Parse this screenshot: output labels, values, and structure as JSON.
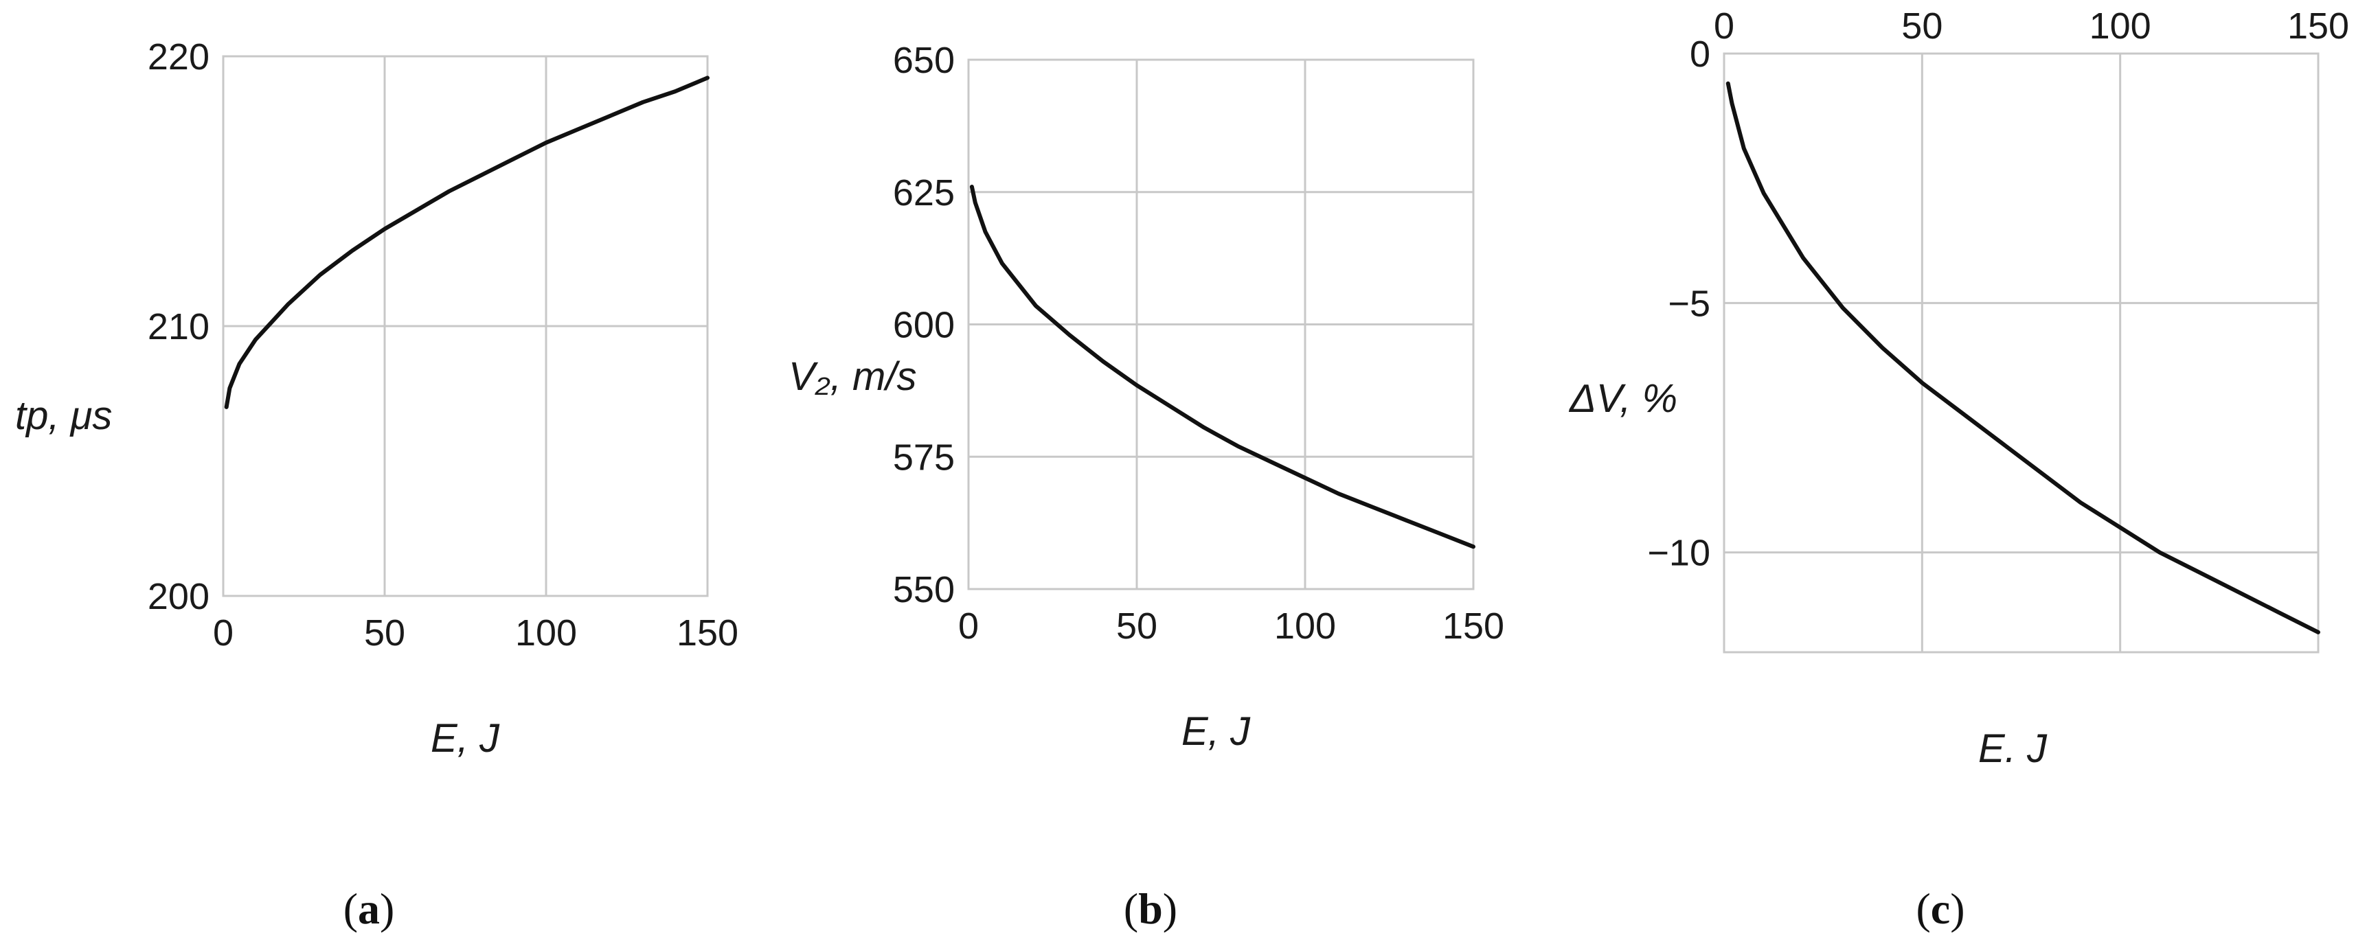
{
  "chart_data": [
    {
      "id": "a",
      "type": "line",
      "caption": {
        "open": "(",
        "letter": "a",
        "close": ")"
      },
      "xlabel": "E, J",
      "ylabel": "tp,  μs",
      "xlim": [
        0,
        150
      ],
      "ylim": [
        200,
        220
      ],
      "xticks": [
        0,
        50,
        100,
        150
      ],
      "yticks": [
        200,
        210,
        220
      ],
      "xtick_labels": [
        "0",
        "50",
        "100",
        "150"
      ],
      "ytick_labels": [
        "200",
        "210",
        "220"
      ],
      "x_axis_position": "bottom",
      "grid": true,
      "series": [
        {
          "color": "#111111",
          "x": [
            1,
            2,
            5,
            10,
            20,
            30,
            40,
            50,
            60,
            70,
            80,
            90,
            100,
            110,
            120,
            130,
            140,
            150
          ],
          "y": [
            207.0,
            207.7,
            208.6,
            209.5,
            210.8,
            211.9,
            212.8,
            213.6,
            214.3,
            215.0,
            215.6,
            216.2,
            216.8,
            217.3,
            217.8,
            218.3,
            218.7,
            219.2
          ]
        }
      ]
    },
    {
      "id": "b",
      "type": "line",
      "caption": {
        "open": "(",
        "letter": "b",
        "close": ")"
      },
      "xlabel": "E, J",
      "ylabel": "V₂, m/s",
      "xlim": [
        0,
        150
      ],
      "ylim": [
        550,
        650
      ],
      "xticks": [
        0,
        50,
        100,
        150
      ],
      "yticks": [
        550,
        575,
        600,
        625,
        650
      ],
      "xtick_labels": [
        "0",
        "50",
        "100",
        "150"
      ],
      "ytick_labels": [
        "550",
        "575",
        "600",
        "625",
        "650"
      ],
      "x_axis_position": "bottom",
      "grid": true,
      "series": [
        {
          "color": "#111111",
          "x": [
            1,
            2,
            5,
            10,
            20,
            30,
            40,
            50,
            60,
            70,
            80,
            90,
            100,
            110,
            120,
            130,
            140,
            150
          ],
          "y": [
            626.0,
            623.0,
            617.5,
            611.5,
            603.5,
            598.0,
            593.0,
            588.5,
            584.5,
            580.5,
            577.0,
            574.0,
            571.0,
            568.0,
            565.5,
            563.0,
            560.5,
            558.0
          ]
        }
      ]
    },
    {
      "id": "c",
      "type": "line",
      "caption": {
        "open": "(",
        "letter": "c",
        "close": ")"
      },
      "xlabel": "E. J",
      "ylabel": "ΔV, %",
      "xlim": [
        0,
        150
      ],
      "ylim": [
        -12,
        0
      ],
      "xticks": [
        0,
        50,
        100,
        150
      ],
      "yticks": [
        0,
        -5,
        -10
      ],
      "xtick_labels": [
        "0",
        "50",
        "100",
        "150"
      ],
      "ytick_labels": [
        "0",
        "−5",
        "−10"
      ],
      "x_axis_position": "top",
      "grid": true,
      "series": [
        {
          "color": "#111111",
          "x": [
            1,
            2,
            5,
            10,
            20,
            30,
            40,
            50,
            60,
            70,
            80,
            90,
            100,
            110,
            120,
            130,
            140,
            150
          ],
          "y": [
            -0.6,
            -1.0,
            -1.9,
            -2.8,
            -4.1,
            -5.1,
            -5.9,
            -6.6,
            -7.2,
            -7.8,
            -8.4,
            -9.0,
            -9.5,
            -10.0,
            -10.4,
            -10.8,
            -11.2,
            -11.6
          ]
        }
      ]
    }
  ]
}
